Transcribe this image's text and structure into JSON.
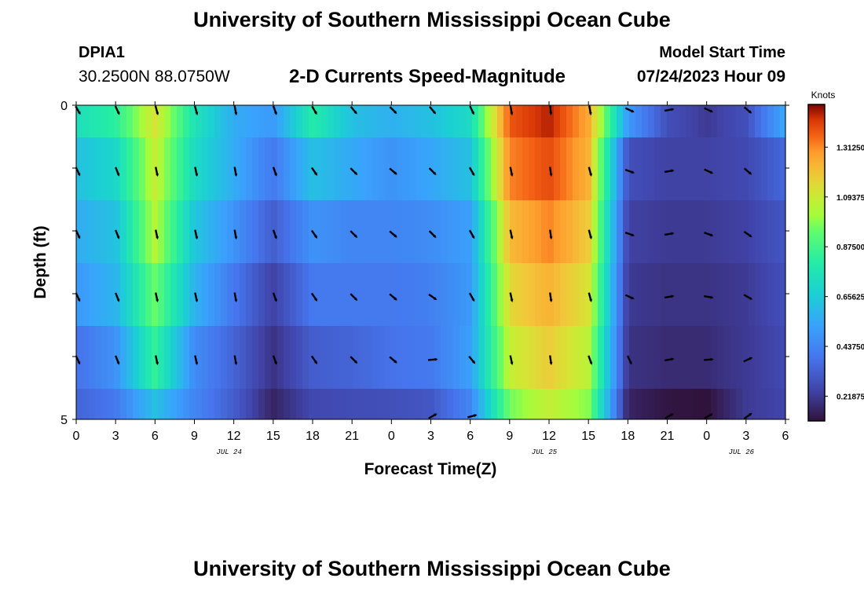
{
  "header": {
    "title": "University of Southern Mississippi Ocean Cube",
    "station_id": "DPIA1",
    "station_coords": "30.2500N  88.0750W",
    "subtitle": "2-D Currents Speed-Magnitude",
    "start_label": "Model Start Time",
    "start_value": "07/24/2023 Hour 09"
  },
  "footer": {
    "title": "University of Southern Mississippi Ocean Cube"
  },
  "chart_data": {
    "type": "heatmap",
    "title": "2-D Currents Speed-Magnitude",
    "xlabel": "Forecast Time(Z)",
    "ylabel": "Depth (ft)",
    "x_ticks": [
      "0",
      "3",
      "6",
      "9",
      "12",
      "15",
      "18",
      "21",
      "0",
      "3",
      "6",
      "9",
      "12",
      "15",
      "18",
      "21",
      "0",
      "3",
      "6"
    ],
    "date_labels": [
      {
        "label": "JUL 24",
        "at_tick": 4
      },
      {
        "label": "JUL 25",
        "at_tick": 12
      },
      {
        "label": "JUL 26",
        "at_tick": 17
      }
    ],
    "y_ticks": [
      "0",
      "5"
    ],
    "ylim": [
      0,
      5
    ],
    "colorbar": {
      "unit": "Knots",
      "min": 0.11,
      "max": 1.5,
      "ticks": [
        "1.31250",
        "1.09375",
        "0.87500",
        "0.65625",
        "0.43750",
        "0.21875"
      ],
      "tick_values": [
        1.3125,
        1.09375,
        0.875,
        0.65625,
        0.4375,
        0.21875
      ]
    },
    "time_hours": [
      0,
      3,
      6,
      9,
      12,
      15,
      18,
      21,
      24,
      27,
      30,
      33,
      36,
      39,
      42,
      45,
      48,
      51,
      54
    ],
    "rows": [
      {
        "depth": "0",
        "values": [
          0.74,
          0.82,
          1.12,
          0.76,
          0.56,
          0.5,
          0.8,
          0.62,
          0.57,
          0.62,
          0.72,
          1.38,
          1.46,
          1.26,
          0.5,
          0.28,
          0.22,
          0.28,
          0.55
        ]
      },
      {
        "depth": "1",
        "values": [
          0.62,
          0.7,
          1.08,
          0.72,
          0.56,
          0.4,
          0.62,
          0.55,
          0.48,
          0.54,
          0.62,
          1.32,
          1.4,
          1.24,
          0.28,
          0.24,
          0.24,
          0.26,
          0.35
        ]
      },
      {
        "depth": "2",
        "values": [
          0.56,
          0.62,
          1.05,
          0.64,
          0.48,
          0.32,
          0.48,
          0.44,
          0.44,
          0.46,
          0.52,
          1.22,
          1.32,
          1.18,
          0.24,
          0.22,
          0.22,
          0.24,
          0.3
        ]
      },
      {
        "depth": "3",
        "values": [
          0.5,
          0.58,
          0.95,
          0.58,
          0.4,
          0.24,
          0.4,
          0.4,
          0.4,
          0.42,
          0.5,
          1.15,
          1.24,
          1.12,
          0.22,
          0.2,
          0.2,
          0.22,
          0.28
        ]
      },
      {
        "depth": "4",
        "values": [
          0.38,
          0.48,
          0.84,
          0.46,
          0.34,
          0.2,
          0.32,
          0.34,
          0.38,
          0.4,
          0.52,
          1.08,
          1.18,
          1.06,
          0.2,
          0.18,
          0.18,
          0.22,
          0.26
        ]
      },
      {
        "depth": "4.6",
        "values": [
          0.34,
          0.4,
          0.62,
          0.44,
          0.32,
          0.16,
          0.26,
          0.27,
          0.28,
          0.3,
          0.44,
          0.96,
          1.08,
          0.98,
          0.16,
          0.12,
          0.11,
          0.22,
          0.25
        ]
      }
    ],
    "arrow_rows": [
      {
        "depth": "0",
        "directions": [
          150,
          155,
          165,
          165,
          170,
          160,
          150,
          140,
          135,
          140,
          155,
          170,
          175,
          170,
          115,
          80,
          115,
          130,
          0
        ]
      },
      {
        "depth": "1",
        "directions": [
          155,
          158,
          168,
          168,
          170,
          160,
          145,
          135,
          130,
          135,
          150,
          168,
          172,
          165,
          110,
          80,
          115,
          130,
          0
        ]
      },
      {
        "depth": "2",
        "directions": [
          155,
          158,
          168,
          168,
          170,
          160,
          145,
          135,
          130,
          135,
          150,
          168,
          172,
          165,
          110,
          80,
          110,
          125,
          0
        ]
      },
      {
        "depth": "3",
        "directions": [
          155,
          158,
          168,
          168,
          170,
          160,
          145,
          135,
          130,
          125,
          150,
          168,
          172,
          165,
          115,
          80,
          100,
          120,
          0
        ]
      },
      {
        "depth": "4",
        "directions": [
          155,
          158,
          168,
          168,
          170,
          160,
          145,
          135,
          130,
          85,
          140,
          168,
          172,
          160,
          155,
          80,
          85,
          65,
          0
        ]
      },
      {
        "depth": "4.6",
        "directions": [
          0,
          0,
          0,
          0,
          0,
          0,
          0,
          0,
          0,
          60,
          75,
          0,
          0,
          0,
          0,
          60,
          60,
          55,
          0
        ]
      }
    ]
  }
}
